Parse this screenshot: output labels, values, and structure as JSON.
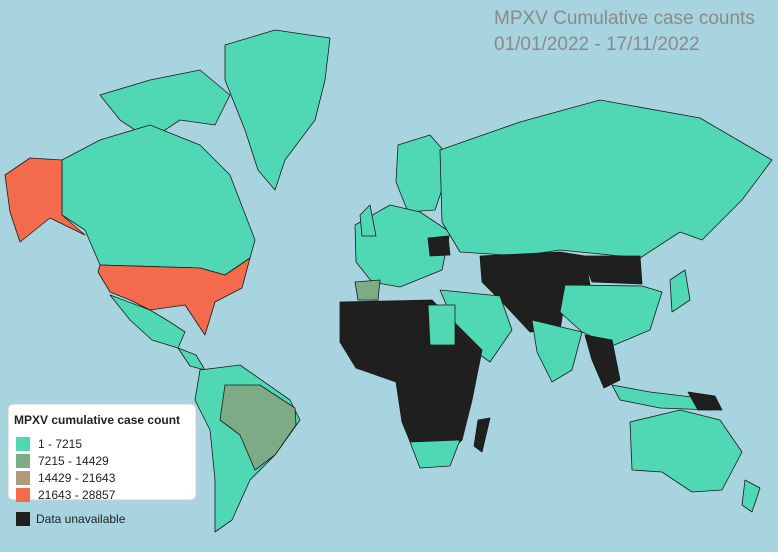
{
  "title": {
    "line1": "MPXV Cumulative case counts",
    "line2": "01/01/2022 - 17/11/2022"
  },
  "legend": {
    "title": "MPXV cumulative case count",
    "items": [
      {
        "label": "1 - 7215",
        "color": "#4fd8b3"
      },
      {
        "label": "7215 - 14429",
        "color": "#7dab86"
      },
      {
        "label": "14429 - 21643",
        "color": "#b09a7e"
      },
      {
        "label": "21643 - 28857",
        "color": "#f46a4c"
      }
    ],
    "unavailable": {
      "label": "Data unavailable",
      "color": "#1f1f1f"
    }
  }
}
